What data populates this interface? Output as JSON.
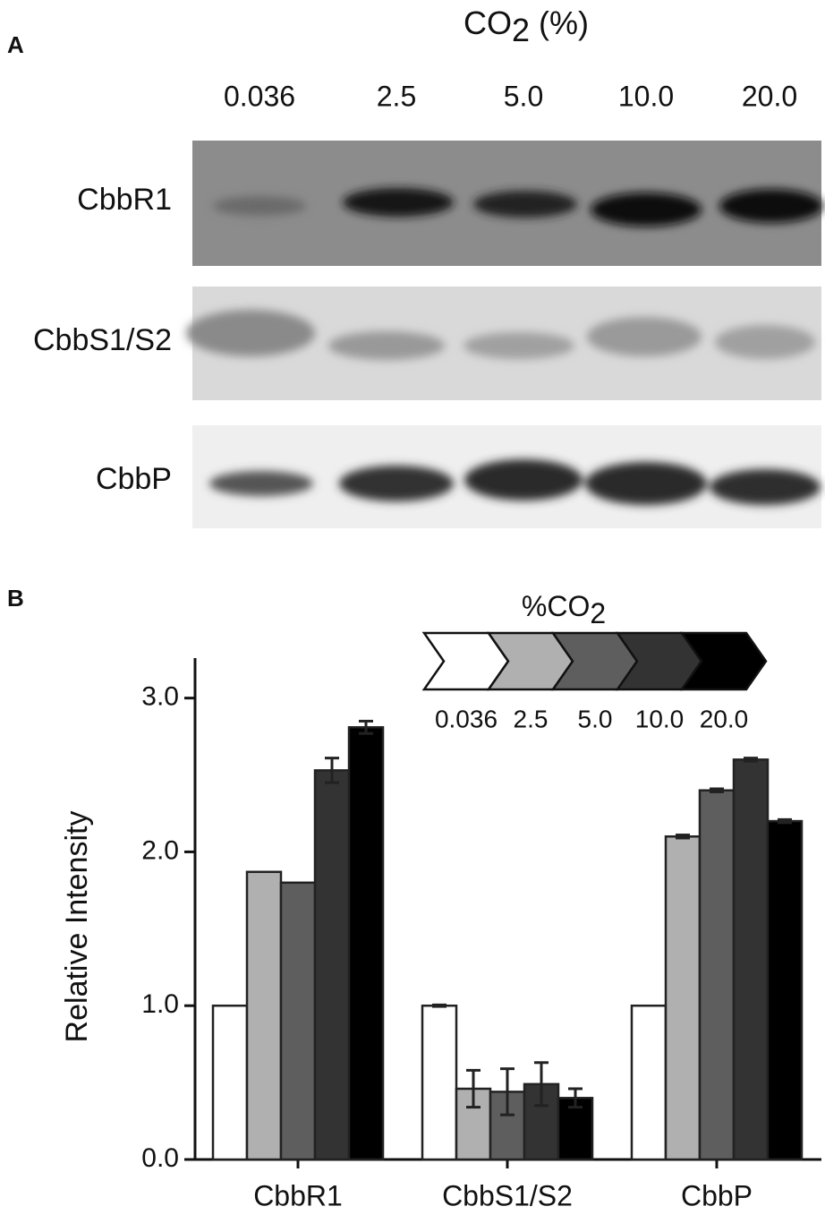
{
  "panel_a": {
    "label": "A",
    "header": {
      "text": "CO",
      "subscript": "2",
      "suffix": " (%)"
    },
    "lanes": [
      "0.036",
      "2.5",
      "5.0",
      "10.0",
      "20.0"
    ],
    "rows": [
      "CbbR1",
      "CbbS1/S2",
      "CbbP"
    ]
  },
  "chart_data": {
    "type": "bar",
    "panel_label": "B",
    "legend_title": {
      "text": "%CO",
      "subscript": "2"
    },
    "y_label": "Relative Intensity",
    "categories": [
      "CbbR1",
      "CbbS1/S2",
      "CbbP"
    ],
    "series": [
      {
        "name": "0.036",
        "color": "#ffffff",
        "values": [
          1.0,
          1.0,
          1.0
        ],
        "errors": [
          0,
          0.005,
          0
        ]
      },
      {
        "name": "2.5",
        "color": "#b0b0b0",
        "values": [
          1.87,
          0.46,
          2.1
        ],
        "errors": [
          0,
          0.12,
          0.01
        ]
      },
      {
        "name": "5.0",
        "color": "#5e5e5e",
        "values": [
          1.8,
          0.44,
          2.4
        ],
        "errors": [
          0,
          0.15,
          0.01
        ]
      },
      {
        "name": "10.0",
        "color": "#333333",
        "values": [
          2.53,
          0.49,
          2.6
        ],
        "errors": [
          0.08,
          0.14,
          0.01
        ]
      },
      {
        "name": "20.0",
        "color": "#000000",
        "values": [
          2.81,
          0.4,
          2.2
        ],
        "errors": [
          0.04,
          0.06,
          0.01
        ]
      }
    ],
    "ylim": [
      0,
      3.26
    ],
    "yticks": [
      {
        "value": 0,
        "label": "0.0"
      },
      {
        "value": 1,
        "label": "1.0"
      },
      {
        "value": 2,
        "label": "2.0"
      },
      {
        "value": 3,
        "label": "3.0"
      }
    ]
  }
}
